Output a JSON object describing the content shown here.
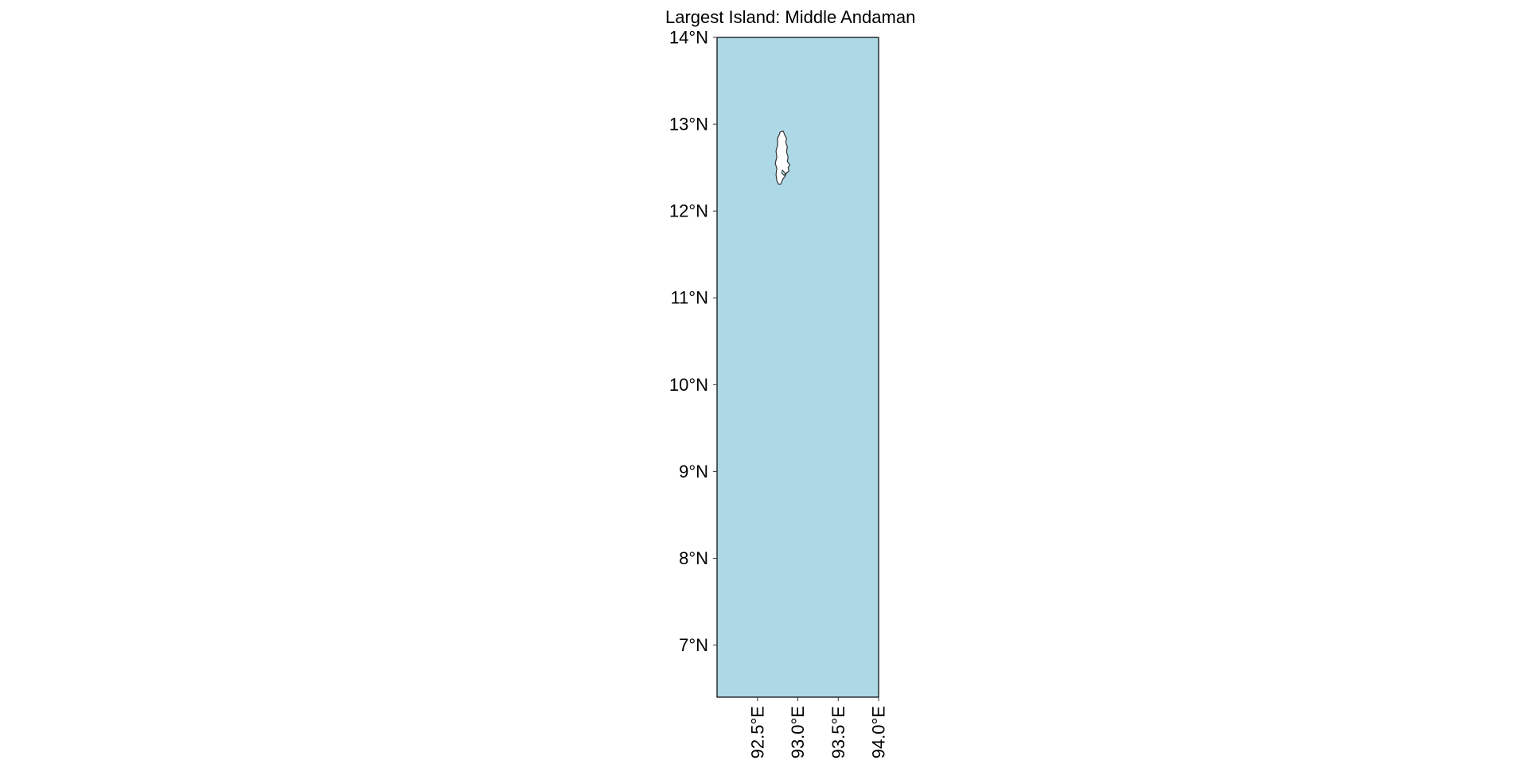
{
  "map": {
    "title": "Largest Island: Middle Andaman",
    "colors": {
      "ocean": "#add8e6",
      "land": "#ffffff",
      "coastline": "#333333",
      "frame": "#000000"
    },
    "extent": {
      "lon": [
        92.0,
        94.0
      ],
      "lat": [
        6.4,
        14.0
      ]
    },
    "lat_ticks": [
      {
        "value": 14,
        "label": "14°N"
      },
      {
        "value": 13,
        "label": "13°N"
      },
      {
        "value": 12,
        "label": "12°N"
      },
      {
        "value": 11,
        "label": "11°N"
      },
      {
        "value": 10,
        "label": "10°N"
      },
      {
        "value": 9,
        "label": "9°N"
      },
      {
        "value": 8,
        "label": "8°N"
      },
      {
        "value": 7,
        "label": "7°N"
      }
    ],
    "lon_ticks": [
      {
        "value": 92.5,
        "label": "92.5°E"
      },
      {
        "value": 93.0,
        "label": "93.0°E"
      },
      {
        "value": 93.5,
        "label": "93.5°E"
      },
      {
        "value": 94.0,
        "label": "94.0°E"
      }
    ],
    "island": {
      "name": "Middle Andaman",
      "outline": [
        [
          92.78,
          12.91
        ],
        [
          92.82,
          12.92
        ],
        [
          92.84,
          12.87
        ],
        [
          92.86,
          12.84
        ],
        [
          92.85,
          12.79
        ],
        [
          92.87,
          12.74
        ],
        [
          92.86,
          12.68
        ],
        [
          92.88,
          12.62
        ],
        [
          92.87,
          12.57
        ],
        [
          92.9,
          12.53
        ],
        [
          92.88,
          12.5
        ],
        [
          92.89,
          12.46
        ],
        [
          92.86,
          12.44
        ],
        [
          92.84,
          12.4
        ],
        [
          92.81,
          12.36
        ],
        [
          92.79,
          12.31
        ],
        [
          92.76,
          12.31
        ],
        [
          92.74,
          12.35
        ],
        [
          92.73,
          12.42
        ],
        [
          92.74,
          12.49
        ],
        [
          92.72,
          12.55
        ],
        [
          92.74,
          12.62
        ],
        [
          92.73,
          12.69
        ],
        [
          92.75,
          12.76
        ],
        [
          92.75,
          12.84
        ],
        [
          92.77,
          12.88
        ]
      ],
      "inlet": [
        [
          92.81,
          12.47
        ],
        [
          92.85,
          12.43
        ],
        [
          92.87,
          12.45
        ],
        [
          92.83,
          12.41
        ],
        [
          92.8,
          12.44
        ]
      ]
    }
  }
}
